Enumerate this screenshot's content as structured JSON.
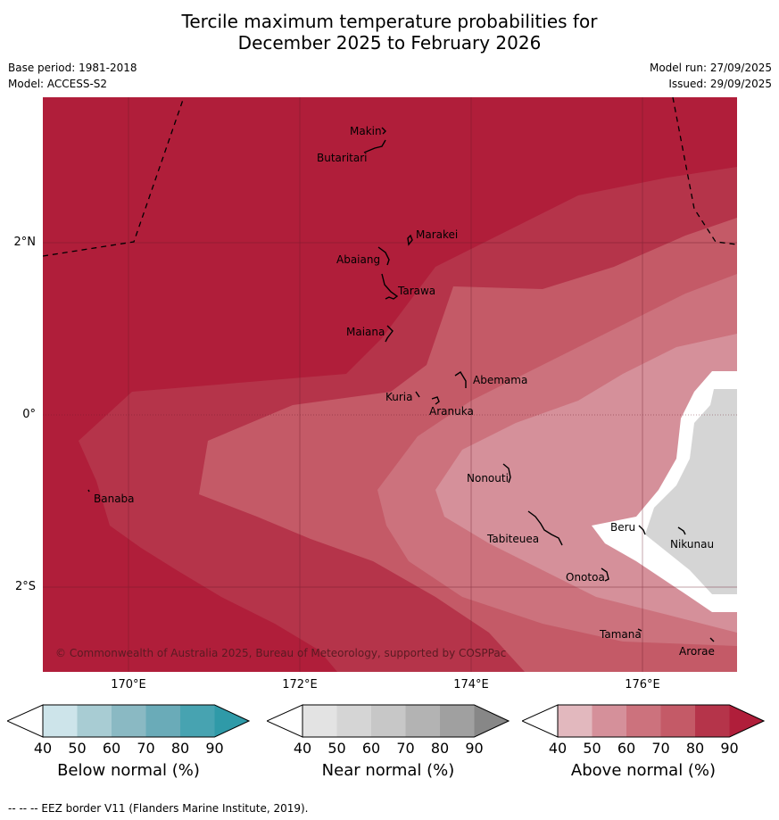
{
  "title": {
    "line1": "Tercile maximum temperature probabilities for",
    "line2": "December 2025 to February 2026"
  },
  "meta": {
    "base_period": "Base period: 1981-2018",
    "model": "Model: ACCESS-S2",
    "model_run": "Model run: 27/09/2025",
    "issued": "Issued: 29/09/2025"
  },
  "map": {
    "credit": "© Commonwealth of Australia 2025, Bureau of Meteorology, supported by COSPPac",
    "lat_labels": [
      "2°N",
      "0°",
      "2°S"
    ],
    "lon_labels": [
      "170°E",
      "172°E",
      "174°E",
      "176°E"
    ],
    "places": [
      "Makin",
      "Butaritari",
      "Marakei",
      "Abaiang",
      "Tarawa",
      "Maiana",
      "Abemama",
      "Kuria",
      "Aranuka",
      "Banaba",
      "Nonouti",
      "Beru",
      "Nikunau",
      "Tabiteuea",
      "Onotoa",
      "Tamana",
      "Arorae"
    ]
  },
  "colorbars": {
    "ticks": [
      "40",
      "50",
      "60",
      "70",
      "80",
      "90"
    ],
    "below": {
      "label": "Below normal (%)",
      "colors": [
        "#cde4ea",
        "#a8ccd3",
        "#8ab9c3",
        "#6aabb8",
        "#47a3b1",
        "#2f9aa8"
      ]
    },
    "near": {
      "label": "Near normal (%)",
      "colors": [
        "#e3e3e3",
        "#d5d5d5",
        "#c7c7c7",
        "#b3b3b3",
        "#a0a0a0",
        "#878787"
      ]
    },
    "above": {
      "label": "Above normal (%)",
      "colors": [
        "#e2b8be",
        "#d5909a",
        "#cc727d",
        "#c45a67",
        "#b5344a",
        "#b01e3a"
      ]
    }
  },
  "footer": {
    "eez": "--  --  -- EEZ border V11 (Flanders Marine Institute, 2019)."
  }
}
